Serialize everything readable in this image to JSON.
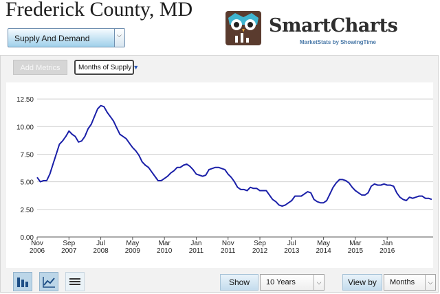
{
  "page": {
    "title": "Frederick County, MD"
  },
  "metric_select": {
    "value": "Supply And Demand"
  },
  "brand": {
    "name": "SmartCharts",
    "tagline": "MarketStats by ShowingTime"
  },
  "controls": {
    "add_metrics": "Add Metrics",
    "metric_chip": "Months of Supply",
    "chip_arrow": "▼"
  },
  "chart_data": {
    "type": "line",
    "y_tick_labels": [
      "0.00",
      "2.50",
      "5.00",
      "7.50",
      "10.00",
      "12.50"
    ],
    "ylim": [
      0,
      13.5
    ],
    "x_tick_labels": [
      {
        "m": "Nov",
        "y": "2006"
      },
      {
        "m": "Sep",
        "y": "2007"
      },
      {
        "m": "Jul",
        "y": "2008"
      },
      {
        "m": "May",
        "y": "2009"
      },
      {
        "m": "Mar",
        "y": "2010"
      },
      {
        "m": "Jan",
        "y": "2011"
      },
      {
        "m": "Nov",
        "y": "2011"
      },
      {
        "m": "Sep",
        "y": "2012"
      },
      {
        "m": "Jul",
        "y": "2013"
      },
      {
        "m": "May",
        "y": "2014"
      },
      {
        "m": "Mar",
        "y": "2015"
      },
      {
        "m": "Jan",
        "y": "2016"
      }
    ],
    "line_color": "#1a1fa8",
    "grid": true,
    "series": [
      {
        "values": [
          5.4,
          5.0,
          5.1,
          5.1,
          5.7,
          6.6,
          7.5,
          8.4,
          8.7,
          9.1,
          9.6,
          9.3,
          9.1,
          8.6,
          8.7,
          9.1,
          9.8,
          10.2,
          10.9,
          11.6,
          11.9,
          11.8,
          11.3,
          10.9,
          10.5,
          9.9,
          9.3,
          9.1,
          8.9,
          8.5,
          8.1,
          7.8,
          7.4,
          6.8,
          6.5,
          6.3,
          5.9,
          5.5,
          5.1,
          5.1,
          5.3,
          5.5,
          5.8,
          6.0,
          6.3,
          6.3,
          6.5,
          6.6,
          6.4,
          6.1,
          5.7,
          5.6,
          5.5,
          5.6,
          6.1,
          6.2,
          6.3,
          6.3,
          6.2,
          6.1,
          5.7,
          5.4,
          5.0,
          4.5,
          4.3,
          4.3,
          4.2,
          4.5,
          4.4,
          4.4,
          4.2,
          4.2,
          4.2,
          3.8,
          3.4,
          3.2,
          2.9,
          2.8,
          2.9,
          3.1,
          3.3,
          3.7,
          3.7,
          3.7,
          3.9,
          4.1,
          4.0,
          3.4,
          3.2,
          3.1,
          3.1,
          3.3,
          3.9,
          4.5,
          4.9,
          5.2,
          5.2,
          5.1,
          4.9,
          4.5,
          4.2,
          4.0,
          3.8,
          3.8,
          4.0,
          4.6,
          4.8,
          4.7,
          4.7,
          4.8,
          4.7,
          4.7,
          4.6,
          4.0,
          3.6,
          3.4,
          3.3,
          3.6,
          3.5,
          3.6,
          3.7,
          3.7,
          3.5,
          3.5,
          3.4
        ]
      }
    ]
  },
  "toolbar": {
    "show_label": "Show",
    "range_value": "10 Years",
    "view_by_label": "View by",
    "period_value": "Months"
  }
}
